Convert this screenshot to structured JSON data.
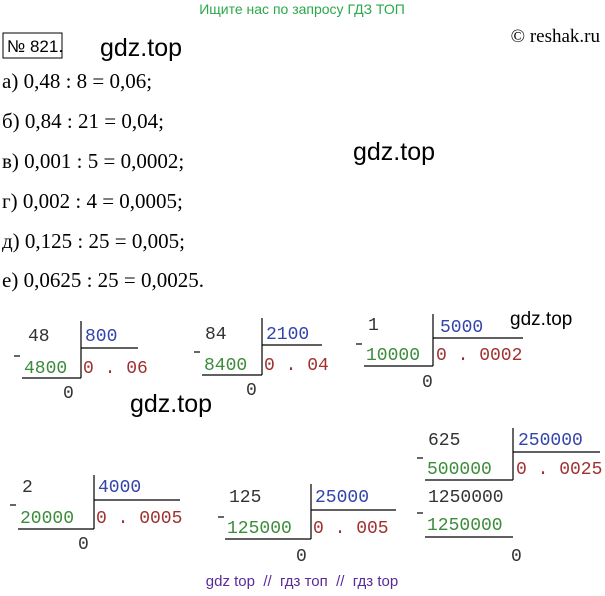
{
  "header": {
    "banner": "Ищите нас по запросу ГДЗ ТОП",
    "number": "№ 821.",
    "site": "© reshak.ru"
  },
  "watermarks": [
    "gdz.top",
    "gdz.top",
    "gdz.top",
    "gdz.top"
  ],
  "lines": [
    "а) 0,48 : 8 = 0,06;",
    "б) 0,84 : 21 = 0,04;",
    "в) 0,001 : 5 = 0,0002;",
    "г) 0,002 : 4 = 0,0005;",
    "д) 0,125 : 25 = 0,005;",
    "е) 0,0625 : 25 = 0,0025."
  ],
  "divisions": [
    {
      "dividend": "48",
      "divisor": "800",
      "product": "4800",
      "quotient": "0 . 06",
      "remainder": "0"
    },
    {
      "dividend": "84",
      "divisor": "2100",
      "product": "8400",
      "quotient": "0 . 04",
      "remainder": "0"
    },
    {
      "dividend": "1",
      "divisor": "5000",
      "product": "10000",
      "quotient": "0 . 0002",
      "remainder": "0"
    },
    {
      "dividend": "2",
      "divisor": "4000",
      "product": "20000",
      "quotient": "0 . 0005",
      "remainder": "0"
    },
    {
      "dividend": "125",
      "divisor": "25000",
      "product": "125000",
      "quotient": "0 . 005",
      "remainder": "0"
    },
    {
      "dividend": "625",
      "divisor": "250000",
      "product": "500000",
      "quotient": "0 . 0025",
      "next": "1250000",
      "product2": "1250000",
      "remainder": "0"
    }
  ],
  "footer": "gdz top  //  гдз топ  //  гдз top"
}
